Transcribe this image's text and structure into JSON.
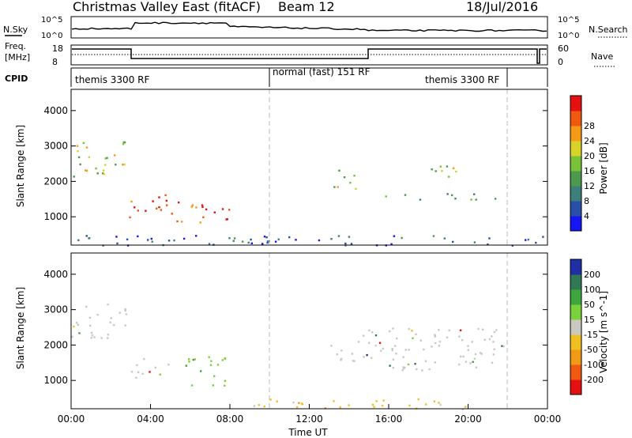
{
  "header": {
    "station": "Christmas Valley East (fitACF)",
    "beam": "Beam 12",
    "date": "18/Jul/2016"
  },
  "top_panels": {
    "nsky_label": "N.Sky",
    "nsky_ticks": [
      "10^5",
      "10^0"
    ],
    "nsearch_label": "N.Search",
    "nsearch_ticks": [
      "10^5",
      "10^0"
    ],
    "freq_label": "Freq.",
    "freq_unit": "[MHz]",
    "freq_ticks": [
      "18",
      "8"
    ],
    "nave_label": "Nave",
    "nave_ticks": [
      "60",
      "0"
    ],
    "cpid_label": "CPID",
    "cpid_segments": [
      {
        "label": "themis 3300 RF",
        "start": 0.0,
        "end": 10.0
      },
      {
        "label": "normal (fast) 151 RF",
        "start": 10.0,
        "end": 14.9
      },
      {
        "label": "themis 3300 RF",
        "start": 14.9,
        "end": 22.0
      }
    ]
  },
  "chart_data": [
    {
      "type": "heatmap",
      "name": "power",
      "xlabel": "",
      "ylabel": "Slant Range [km]",
      "xlim": [
        0,
        24
      ],
      "ylim": [
        200,
        4600
      ],
      "yticks": [
        "1000",
        "2000",
        "3000",
        "4000"
      ],
      "colorbar": {
        "label": "Power [dB]",
        "ticks": [
          "4",
          "8",
          "12",
          "16",
          "20",
          "24",
          "28"
        ],
        "colors": [
          "#1515f5",
          "#2a4fa8",
          "#3f7f7a",
          "#4c9a4c",
          "#79c23a",
          "#d8d22a",
          "#f59a16",
          "#f05a10",
          "#e51010"
        ]
      },
      "echo_regions": [
        {
          "t0": 0.0,
          "t1": 2.8,
          "r0": 2150,
          "r1": 3200,
          "level": 0.55
        },
        {
          "t0": 2.8,
          "t1": 5.3,
          "r0": 1000,
          "r1": 1650,
          "level": 0.9
        },
        {
          "t0": 5.3,
          "t1": 8.1,
          "r0": 800,
          "r1": 1500,
          "level": 0.85
        },
        {
          "t0": 13.0,
          "t1": 14.4,
          "r0": 1800,
          "r1": 2400,
          "level": 0.5
        },
        {
          "t0": 17.5,
          "t1": 19.5,
          "r0": 2000,
          "r1": 2500,
          "level": 0.55
        },
        {
          "t0": 15.8,
          "t1": 22.0,
          "r0": 1500,
          "r1": 1700,
          "level": 0.35
        },
        {
          "t0": 0.0,
          "t1": 24.0,
          "r0": 200,
          "r1": 500,
          "level": 0.2
        }
      ]
    },
    {
      "type": "heatmap",
      "name": "velocity",
      "xlabel": "Time UT",
      "ylabel": "Slant Range [km]",
      "xlim": [
        0,
        24
      ],
      "ylim": [
        200,
        4600
      ],
      "xticks": [
        "00:00",
        "04:00",
        "08:00",
        "12:00",
        "16:00",
        "20:00",
        "00:00"
      ],
      "yticks": [
        "1000",
        "2000",
        "3000",
        "4000"
      ],
      "colorbar": {
        "label": "Velocity [m s^-1]",
        "ticks": [
          "200",
          "100",
          "50",
          "15",
          "-15",
          "-50",
          "-100",
          "-200"
        ],
        "colors": [
          "#1f2fa8",
          "#2f7a55",
          "#3da63d",
          "#7bd13b",
          "#c9c9c0",
          "#f0c020",
          "#f09a18",
          "#f05a10",
          "#e51010"
        ]
      },
      "echo_regions": [
        {
          "t0": 0.0,
          "t1": 2.8,
          "r0": 2150,
          "r1": 3200,
          "kind": "gray"
        },
        {
          "t0": 2.8,
          "t1": 5.0,
          "r0": 1100,
          "r1": 1650,
          "kind": "gray"
        },
        {
          "t0": 5.5,
          "t1": 7.9,
          "r0": 800,
          "r1": 1700,
          "kind": "green"
        },
        {
          "t0": 13.0,
          "t1": 22.0,
          "r0": 1300,
          "r1": 2500,
          "kind": "gray"
        },
        {
          "t0": 9.0,
          "t1": 20.0,
          "r0": 200,
          "r1": 500,
          "kind": "orange"
        }
      ]
    }
  ]
}
